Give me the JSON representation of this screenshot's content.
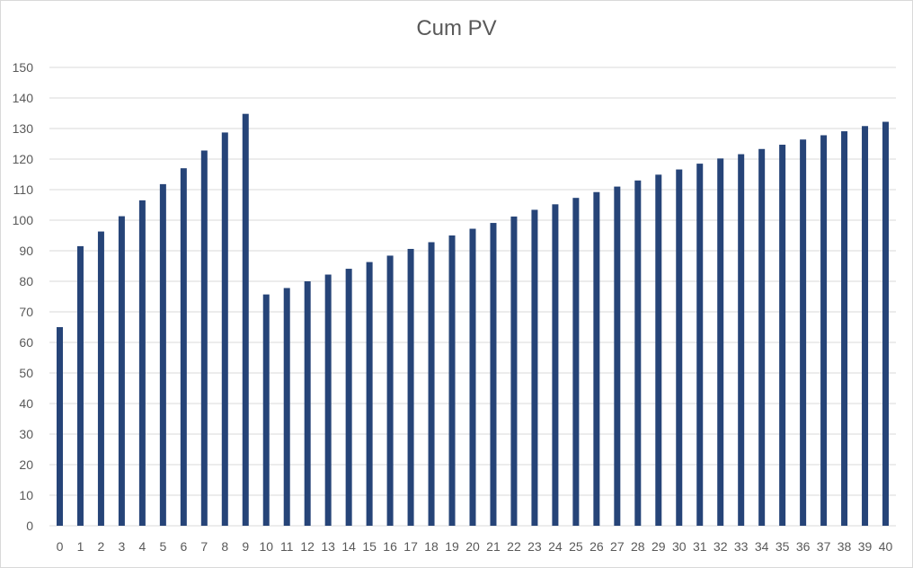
{
  "chart_data": {
    "type": "bar",
    "title": "Cum PV",
    "xlabel": "",
    "ylabel": "",
    "ylim": [
      0,
      150
    ],
    "y_ticks": [
      0,
      10,
      20,
      30,
      40,
      50,
      60,
      70,
      80,
      90,
      100,
      110,
      120,
      130,
      140,
      150
    ],
    "grid": true,
    "legend": "none",
    "bar_color": "#264478",
    "grid_color": "#d9d9d9",
    "categories": [
      "0",
      "1",
      "2",
      "3",
      "4",
      "5",
      "6",
      "7",
      "8",
      "9",
      "10",
      "11",
      "12",
      "13",
      "14",
      "15",
      "16",
      "17",
      "18",
      "19",
      "20",
      "21",
      "22",
      "23",
      "24",
      "25",
      "26",
      "27",
      "28",
      "29",
      "30",
      "31",
      "32",
      "33",
      "34",
      "35",
      "36",
      "37",
      "38",
      "39",
      "40"
    ],
    "values": [
      65,
      91.5,
      96.3,
      101.3,
      106.5,
      111.8,
      117,
      122.8,
      128.7,
      134.8,
      75.7,
      77.8,
      80,
      82.2,
      84.1,
      86.3,
      88.4,
      90.6,
      92.8,
      95,
      97.2,
      99.1,
      101.2,
      103.4,
      105.2,
      107.3,
      109.2,
      111,
      113,
      114.9,
      116.6,
      118.5,
      120.2,
      121.6,
      123.3,
      124.7,
      126.4,
      127.8,
      129.1,
      130.8,
      132.2
    ]
  }
}
